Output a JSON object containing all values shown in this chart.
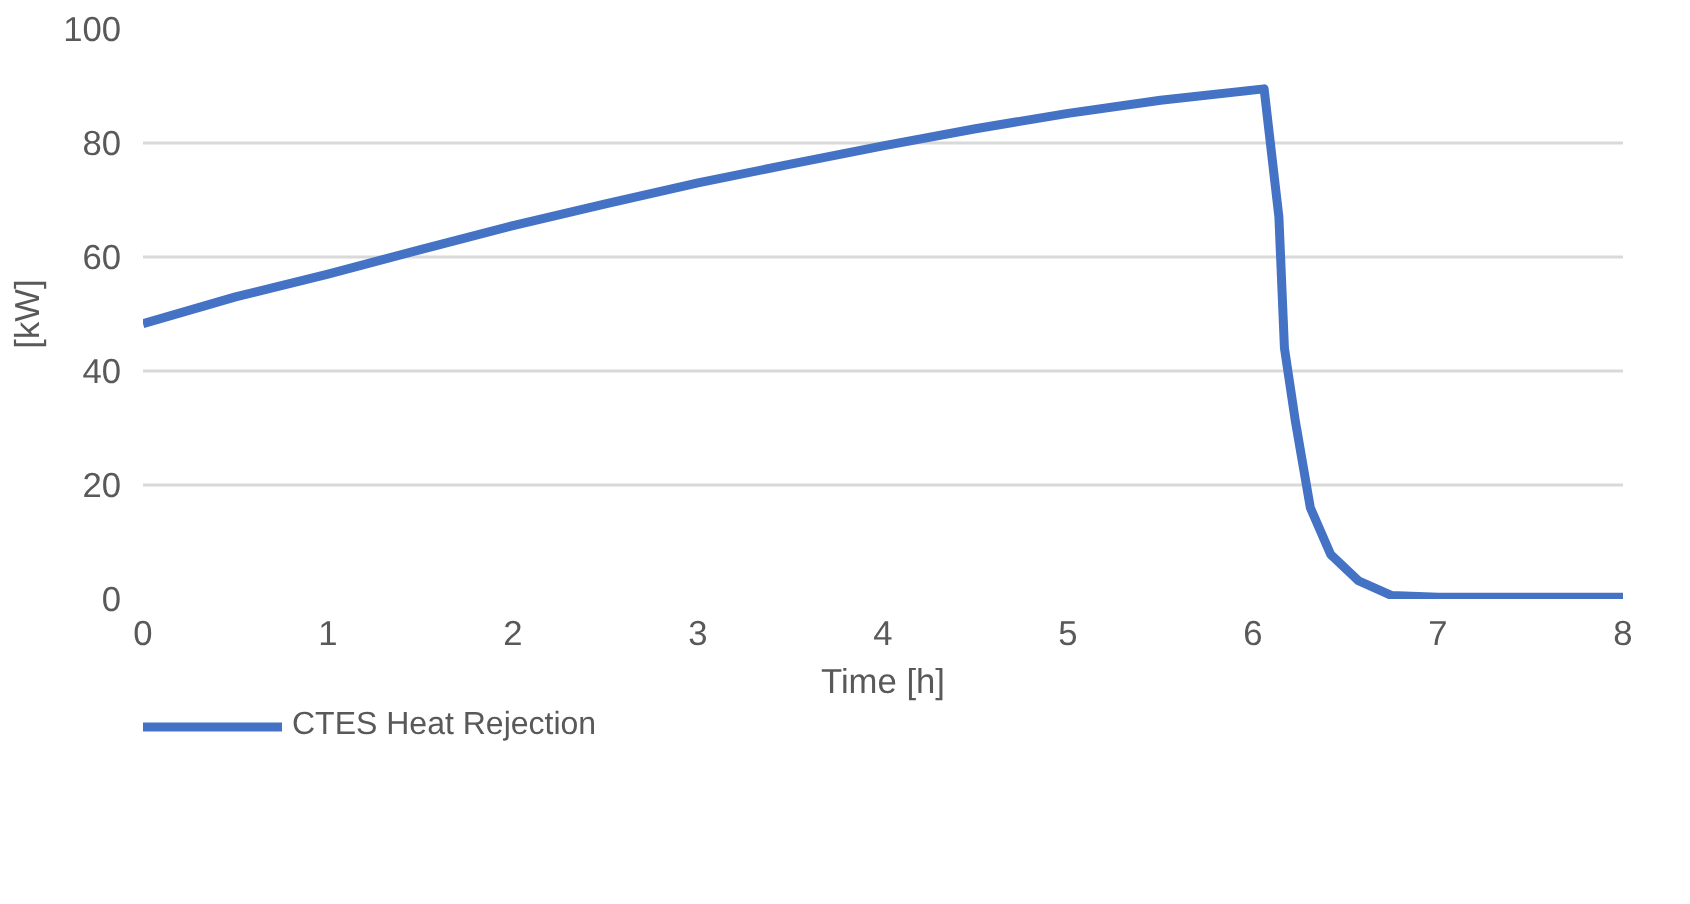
{
  "chart_data": {
    "type": "line",
    "xlabel": "Time [h]",
    "ylabel": "[kW]",
    "xlim": [
      0,
      8
    ],
    "xticks": [
      0,
      1,
      2,
      3,
      4,
      5,
      6,
      7,
      8
    ],
    "ylim": [
      0,
      100
    ],
    "yticks": [
      0,
      20,
      40,
      60,
      80,
      100
    ],
    "grid": "y",
    "legend": "bottom left",
    "marker": "none",
    "line_style": "solid",
    "series": [
      {
        "name": "CTES Heat Rejection",
        "color": "#4472c4",
        "x": [
          0,
          0.5,
          1,
          1.5,
          2,
          2.5,
          3,
          3.5,
          4,
          4.5,
          5,
          5.5,
          6.06,
          6.14,
          6.17,
          6.23,
          6.31,
          6.42,
          6.57,
          6.75,
          7,
          8
        ],
        "values": [
          48.3,
          53,
          57,
          61.3,
          65.5,
          69.3,
          73,
          76.3,
          79.5,
          82.5,
          85.2,
          87.5,
          89.5,
          67,
          44,
          31,
          16,
          7.8,
          3.2,
          0.6,
          0.3,
          0.3
        ]
      }
    ]
  }
}
